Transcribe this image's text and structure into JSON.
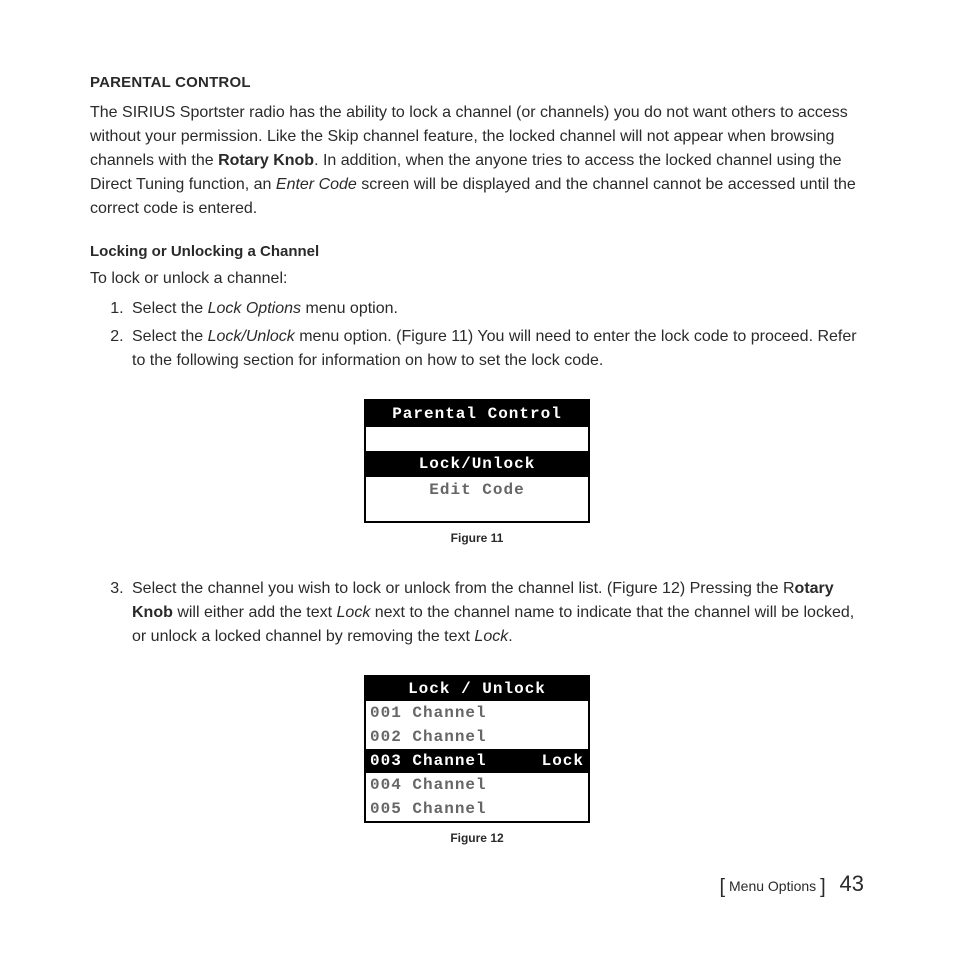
{
  "section": {
    "heading": "PARENTAL CONTROL",
    "para_parts": {
      "p1a": "The SIRIUS Sportster radio has the ability to lock a channel (or channels) you do not want others to access without your permission. Like the Skip channel feature, the locked channel will not appear when browsing channels with the ",
      "p1_bold": "Rotary Knob",
      "p1b": ". In addition, when the anyone tries to access the locked channel using the Direct Tuning function, an ",
      "p1_italic": "Enter Code",
      "p1c": " screen will be displayed and the channel cannot be accessed until the correct code is entered."
    },
    "sub_heading": "Locking or Unlocking a Channel",
    "sub_intro": "To lock or unlock a channel:",
    "steps": {
      "s1a": "Select the ",
      "s1_italic": "Lock Options",
      "s1b": " menu option.",
      "s2a": "Select the ",
      "s2_italic": "Lock/Unlock",
      "s2b": " menu option. (Figure 11) You will need to enter the lock code to proceed. Refer to the following section for information on how to set the lock code.",
      "s3a": "Select the channel you wish to lock or unlock from the channel list. (Figure 12) Pressing the R",
      "s3_bold": "otary Knob",
      "s3b": " will either add the text ",
      "s3_italic1": "Lock",
      "s3c": " next to the channel name to indicate that the channel will be locked, or unlock a locked channel by removing the text ",
      "s3_italic2": "Lock",
      "s3d": "."
    }
  },
  "figure11": {
    "title": "Parental Control",
    "row_selected": "Lock/Unlock",
    "row2": "Edit Code",
    "caption": "Figure 11",
    "colors": {
      "border": "#000000",
      "bg": "#ffffff",
      "text_dim": "#666666",
      "text_inv": "#ffffff",
      "inv_bg": "#000000"
    }
  },
  "figure12": {
    "title": "Lock / Unlock",
    "rows": [
      {
        "label": "001 Channel",
        "status": "",
        "selected": false
      },
      {
        "label": "002 Channel",
        "status": "",
        "selected": false
      },
      {
        "label": "003 Channel",
        "status": "Lock",
        "selected": true
      },
      {
        "label": "004 Channel",
        "status": "",
        "selected": false
      },
      {
        "label": "005 Channel",
        "status": "",
        "selected": false
      }
    ],
    "caption": "Figure 12",
    "colors": {
      "border": "#000000",
      "bg": "#ffffff",
      "text_dim": "#666666",
      "text_inv": "#ffffff",
      "inv_bg": "#000000"
    }
  },
  "footer": {
    "label": "Menu Options",
    "page": "43"
  }
}
